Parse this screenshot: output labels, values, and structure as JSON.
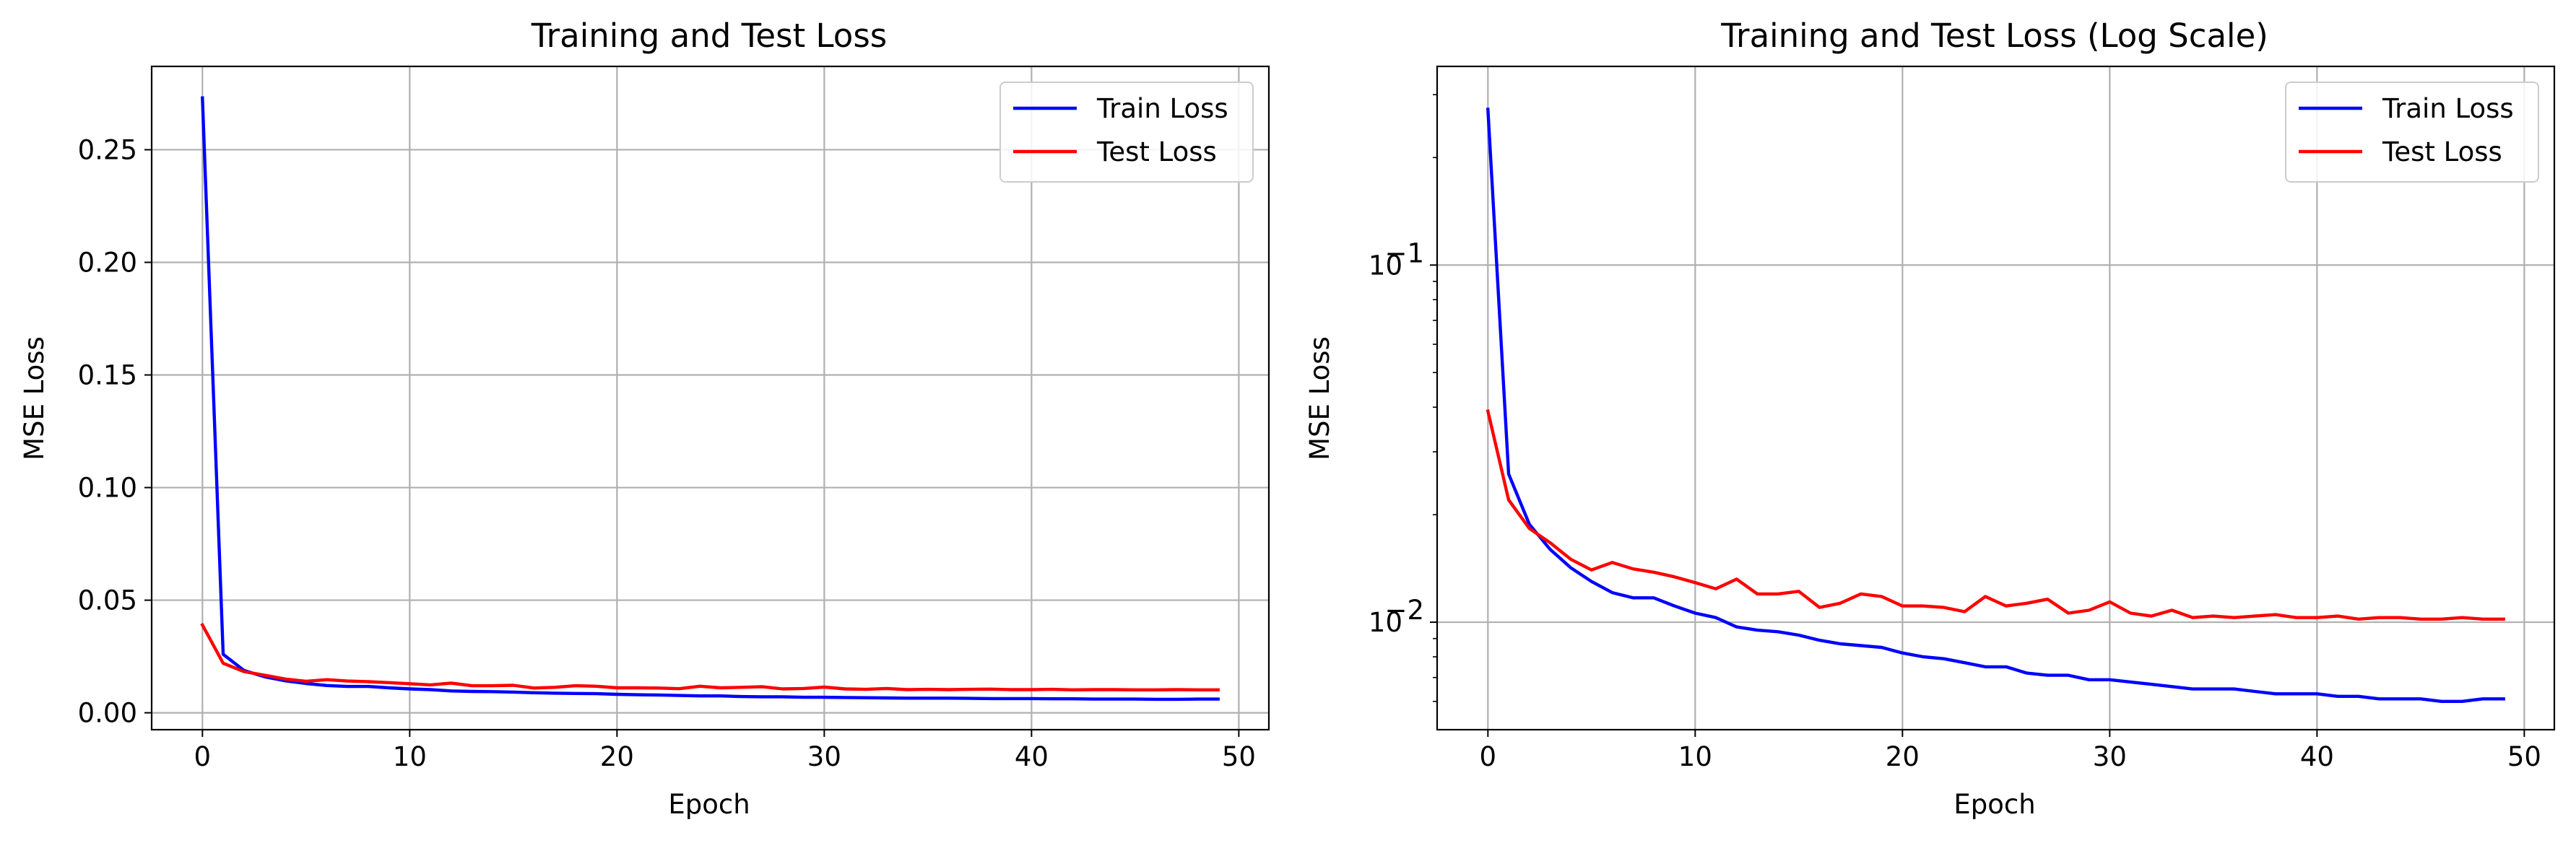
{
  "chart_data": [
    {
      "type": "line",
      "title": "Training and Test Loss",
      "xlabel": "Epoch",
      "ylabel": "MSE Loss",
      "xlim": [
        -2.45,
        51.45
      ],
      "ylim": [
        -0.0075,
        0.287
      ],
      "xticks": [
        0,
        10,
        20,
        30,
        40,
        50
      ],
      "xtick_labels": [
        "0",
        "10",
        "20",
        "30",
        "40",
        "50"
      ],
      "yticks": [
        0.0,
        0.05,
        0.1,
        0.15,
        0.2,
        0.25
      ],
      "ytick_labels": [
        "0.00",
        "0.05",
        "0.10",
        "0.15",
        "0.20",
        "0.25"
      ],
      "yscale": "linear",
      "grid": true,
      "legend": "top-right",
      "x": [
        0,
        1,
        2,
        3,
        4,
        5,
        6,
        7,
        8,
        9,
        10,
        11,
        12,
        13,
        14,
        15,
        16,
        17,
        18,
        19,
        20,
        21,
        22,
        23,
        24,
        25,
        26,
        27,
        28,
        29,
        30,
        31,
        32,
        33,
        34,
        35,
        36,
        37,
        38,
        39,
        40,
        41,
        42,
        43,
        44,
        45,
        46,
        47,
        48,
        49
      ],
      "series": [
        {
          "name": "Train Loss",
          "color": "#0000ff",
          "values": [
            0.273,
            0.026,
            0.0188,
            0.016,
            0.0142,
            0.013,
            0.0121,
            0.0117,
            0.0117,
            0.0111,
            0.0106,
            0.0103,
            0.0097,
            0.0095,
            0.0094,
            0.0092,
            0.0089,
            0.0087,
            0.0086,
            0.0085,
            0.0082,
            0.008,
            0.0079,
            0.0077,
            0.0075,
            0.0075,
            0.0072,
            0.0071,
            0.0071,
            0.0069,
            0.0069,
            0.0068,
            0.0067,
            0.0066,
            0.0065,
            0.0065,
            0.0065,
            0.0064,
            0.0063,
            0.0063,
            0.0063,
            0.0062,
            0.0062,
            0.0061,
            0.0061,
            0.0061,
            0.006,
            0.006,
            0.0061,
            0.0061
          ]
        },
        {
          "name": "Test Loss",
          "color": "#ff0000",
          "values": [
            0.039,
            0.022,
            0.0183,
            0.0167,
            0.015,
            0.014,
            0.0147,
            0.0141,
            0.0138,
            0.0134,
            0.0129,
            0.0124,
            0.0132,
            0.012,
            0.012,
            0.0122,
            0.011,
            0.0113,
            0.012,
            0.0118,
            0.0111,
            0.0111,
            0.011,
            0.0107,
            0.0118,
            0.0111,
            0.0113,
            0.0116,
            0.0106,
            0.0108,
            0.0114,
            0.0106,
            0.0104,
            0.0108,
            0.0103,
            0.0104,
            0.0103,
            0.0104,
            0.0105,
            0.0103,
            0.0103,
            0.0104,
            0.0102,
            0.0103,
            0.0103,
            0.0102,
            0.0102,
            0.0103,
            0.0102,
            0.0102
          ]
        }
      ]
    },
    {
      "type": "line",
      "title": "Training and Test Loss (Log Scale)",
      "xlabel": "Epoch",
      "ylabel": "MSE Loss",
      "xlim": [
        -2.45,
        51.45
      ],
      "ylim": [
        0.005,
        0.36
      ],
      "xticks": [
        0,
        10,
        20,
        30,
        40,
        50
      ],
      "xtick_labels": [
        "0",
        "10",
        "20",
        "30",
        "40",
        "50"
      ],
      "yticks": [
        0.01,
        0.1
      ],
      "ytick_labels": [
        [
          "10",
          "−2"
        ],
        [
          "10",
          "−1"
        ]
      ],
      "yscale": "log",
      "grid": true,
      "legend": "top-right",
      "x": [
        0,
        1,
        2,
        3,
        4,
        5,
        6,
        7,
        8,
        9,
        10,
        11,
        12,
        13,
        14,
        15,
        16,
        17,
        18,
        19,
        20,
        21,
        22,
        23,
        24,
        25,
        26,
        27,
        28,
        29,
        30,
        31,
        32,
        33,
        34,
        35,
        36,
        37,
        38,
        39,
        40,
        41,
        42,
        43,
        44,
        45,
        46,
        47,
        48,
        49
      ],
      "series": [
        {
          "name": "Train Loss",
          "color": "#0000ff",
          "values": [
            0.273,
            0.026,
            0.0188,
            0.016,
            0.0142,
            0.013,
            0.0121,
            0.0117,
            0.0117,
            0.0111,
            0.0106,
            0.0103,
            0.0097,
            0.0095,
            0.0094,
            0.0092,
            0.0089,
            0.0087,
            0.0086,
            0.0085,
            0.0082,
            0.008,
            0.0079,
            0.0077,
            0.0075,
            0.0075,
            0.0072,
            0.0071,
            0.0071,
            0.0069,
            0.0069,
            0.0068,
            0.0067,
            0.0066,
            0.0065,
            0.0065,
            0.0065,
            0.0064,
            0.0063,
            0.0063,
            0.0063,
            0.0062,
            0.0062,
            0.0061,
            0.0061,
            0.0061,
            0.006,
            0.006,
            0.0061,
            0.0061
          ]
        },
        {
          "name": "Test Loss",
          "color": "#ff0000",
          "values": [
            0.039,
            0.022,
            0.0183,
            0.0167,
            0.015,
            0.014,
            0.0147,
            0.0141,
            0.0138,
            0.0134,
            0.0129,
            0.0124,
            0.0132,
            0.012,
            0.012,
            0.0122,
            0.011,
            0.0113,
            0.012,
            0.0118,
            0.0111,
            0.0111,
            0.011,
            0.0107,
            0.0118,
            0.0111,
            0.0113,
            0.0116,
            0.0106,
            0.0108,
            0.0114,
            0.0106,
            0.0104,
            0.0108,
            0.0103,
            0.0104,
            0.0103,
            0.0104,
            0.0105,
            0.0103,
            0.0103,
            0.0104,
            0.0102,
            0.0103,
            0.0103,
            0.0102,
            0.0102,
            0.0103,
            0.0102,
            0.0102
          ]
        }
      ]
    }
  ]
}
